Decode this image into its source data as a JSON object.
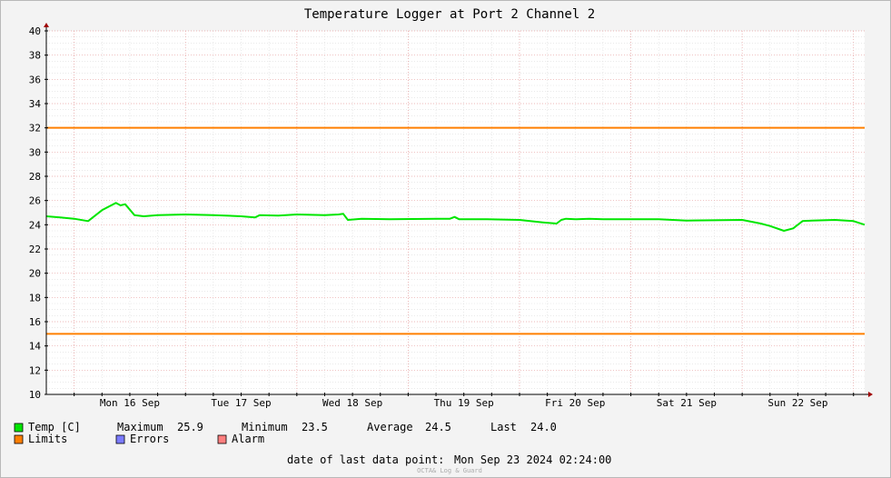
{
  "chart_data": {
    "type": "line",
    "title": "Temperature Logger at Port 2 Channel 2",
    "ylim": [
      10,
      40
    ],
    "yticks": [
      10,
      12,
      14,
      16,
      18,
      20,
      22,
      24,
      26,
      28,
      30,
      32,
      34,
      36,
      38,
      40
    ],
    "xlim": [
      "2024-09-15 18:00",
      "2024-09-23 02:24"
    ],
    "xticks": [
      {
        "label": "Mon 16 Sep",
        "x": "2024-09-16 12:00"
      },
      {
        "label": "Tue 17 Sep",
        "x": "2024-09-17 12:00"
      },
      {
        "label": "Wed 18 Sep",
        "x": "2024-09-18 12:00"
      },
      {
        "label": "Thu 19 Sep",
        "x": "2024-09-19 12:00"
      },
      {
        "label": "Fri 20 Sep",
        "x": "2024-09-20 12:00"
      },
      {
        "label": "Sat 21 Sep",
        "x": "2024-09-21 12:00"
      },
      {
        "label": "Sun 22 Sep",
        "x": "2024-09-22 12:00"
      }
    ],
    "grid": true,
    "limits": {
      "upper": 32,
      "lower": 15,
      "color": "#ff7f00"
    },
    "series": [
      {
        "name": "Temp [C]",
        "color": "#00e600",
        "points": [
          [
            "2024-09-15 18:00",
            24.7
          ],
          [
            "2024-09-15 21:00",
            24.6
          ],
          [
            "2024-09-16 00:00",
            24.5
          ],
          [
            "2024-09-16 03:00",
            24.3
          ],
          [
            "2024-09-16 06:00",
            25.2
          ],
          [
            "2024-09-16 09:00",
            25.8
          ],
          [
            "2024-09-16 10:00",
            25.6
          ],
          [
            "2024-09-16 11:00",
            25.7
          ],
          [
            "2024-09-16 13:00",
            24.8
          ],
          [
            "2024-09-16 15:00",
            24.7
          ],
          [
            "2024-09-16 18:00",
            24.8
          ],
          [
            "2024-09-17 00:00",
            24.85
          ],
          [
            "2024-09-17 06:00",
            24.8
          ],
          [
            "2024-09-17 12:00",
            24.7
          ],
          [
            "2024-09-17 15:00",
            24.6
          ],
          [
            "2024-09-17 16:00",
            24.8
          ],
          [
            "2024-09-17 20:00",
            24.75
          ],
          [
            "2024-09-18 00:00",
            24.85
          ],
          [
            "2024-09-18 06:00",
            24.8
          ],
          [
            "2024-09-18 09:00",
            24.85
          ],
          [
            "2024-09-18 10:00",
            24.9
          ],
          [
            "2024-09-18 11:00",
            24.4
          ],
          [
            "2024-09-18 14:00",
            24.5
          ],
          [
            "2024-09-18 20:00",
            24.45
          ],
          [
            "2024-09-19 06:00",
            24.5
          ],
          [
            "2024-09-19 09:00",
            24.5
          ],
          [
            "2024-09-19 10:00",
            24.65
          ],
          [
            "2024-09-19 11:00",
            24.45
          ],
          [
            "2024-09-19 17:00",
            24.45
          ],
          [
            "2024-09-20 00:00",
            24.4
          ],
          [
            "2024-09-20 05:00",
            24.2
          ],
          [
            "2024-09-20 08:00",
            24.1
          ],
          [
            "2024-09-20 09:00",
            24.4
          ],
          [
            "2024-09-20 10:00",
            24.5
          ],
          [
            "2024-09-20 12:00",
            24.45
          ],
          [
            "2024-09-20 15:00",
            24.5
          ],
          [
            "2024-09-20 18:00",
            24.45
          ],
          [
            "2024-09-21 06:00",
            24.45
          ],
          [
            "2024-09-21 09:00",
            24.4
          ],
          [
            "2024-09-21 12:00",
            24.35
          ],
          [
            "2024-09-22 00:00",
            24.4
          ],
          [
            "2024-09-22 04:00",
            24.1
          ],
          [
            "2024-09-22 06:00",
            23.9
          ],
          [
            "2024-09-22 09:00",
            23.5
          ],
          [
            "2024-09-22 11:00",
            23.7
          ],
          [
            "2024-09-22 13:00",
            24.3
          ],
          [
            "2024-09-22 15:00",
            24.35
          ],
          [
            "2024-09-22 20:00",
            24.4
          ],
          [
            "2024-09-23 00:00",
            24.3
          ],
          [
            "2024-09-23 02:24",
            24.0
          ]
        ]
      }
    ]
  },
  "legend": {
    "temp": {
      "label": "Temp [C]",
      "color": "#00e600"
    },
    "limits": {
      "label": "Limits",
      "color": "#ff7f00"
    },
    "errors": {
      "label": "Errors",
      "color": "#7b7bff"
    },
    "alarm": {
      "label": "Alarm",
      "color": "#ff7f7f"
    }
  },
  "stats": {
    "maximum_label": "Maximum",
    "maximum": "25.9",
    "minimum_label": "Minimum",
    "minimum": "23.5",
    "average_label": "Average",
    "average": "24.5",
    "last_label": "Last",
    "last": "24.0"
  },
  "footer": {
    "last_point_label": "date of last data point:",
    "last_point_value": "Mon Sep 23 2024 02:24:00",
    "credit": "OCTA& Log & Guard"
  }
}
